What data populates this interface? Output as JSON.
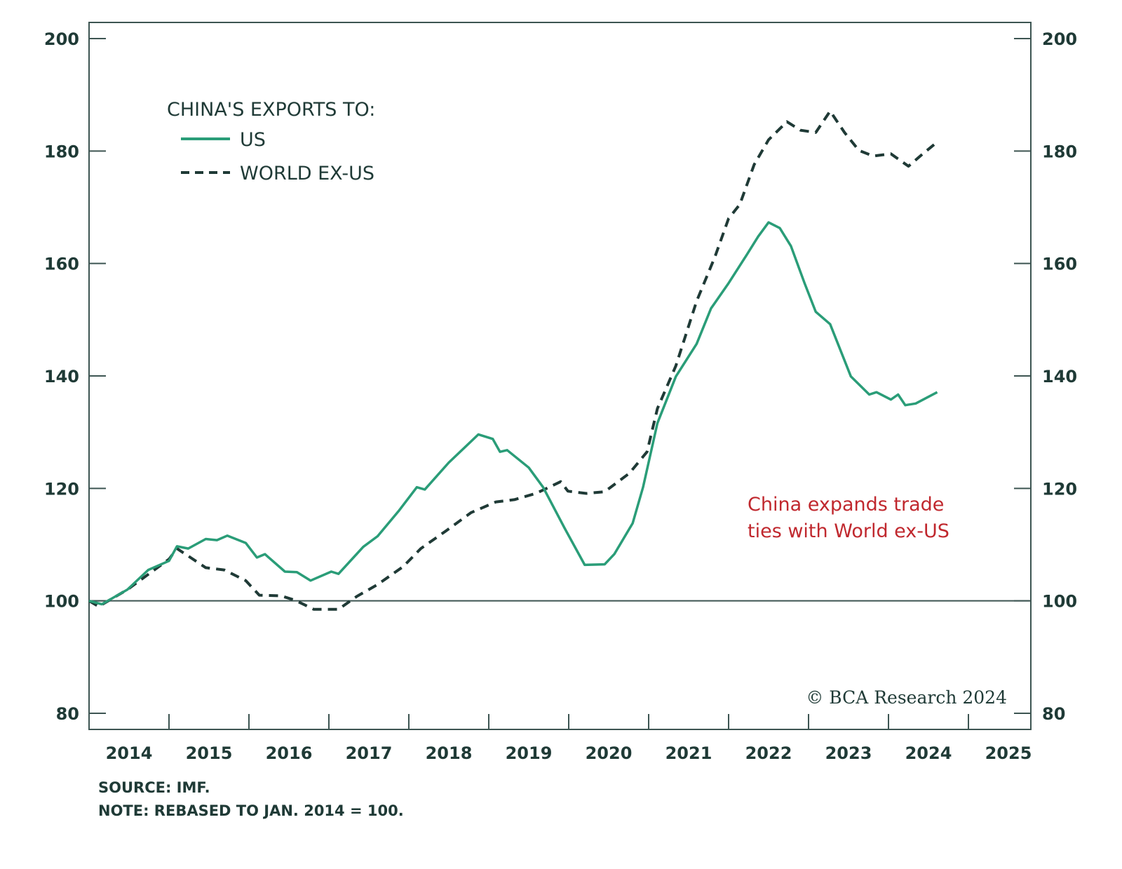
{
  "chart_data": {
    "type": "line",
    "title": "",
    "xlabel": "",
    "ylabel": "",
    "ylim": [
      80,
      200
    ],
    "yticks": [
      80,
      100,
      120,
      140,
      160,
      180,
      200
    ],
    "xlim": [
      2014,
      2025
    ],
    "xtick_labels": [
      "2014",
      "2015",
      "2016",
      "2017",
      "2018",
      "2019",
      "2020",
      "2021",
      "2022",
      "2023",
      "2024",
      "2025"
    ],
    "grid": false,
    "reference_line": 100,
    "legend": {
      "title": "CHINA'S EXPORTS TO:",
      "placement": "top-left"
    },
    "series": [
      {
        "name": "US",
        "color": "#2a9d78",
        "style": "solid",
        "x": [
          2014.0,
          2014.16,
          2014.48,
          2014.74,
          2015.0,
          2015.1,
          2015.24,
          2015.46,
          2015.6,
          2015.73,
          2015.96,
          2016.1,
          2016.2,
          2016.45,
          2016.6,
          2016.77,
          2017.03,
          2017.12,
          2017.43,
          2017.61,
          2017.88,
          2018.1,
          2018.2,
          2018.5,
          2018.87,
          2019.05,
          2019.14,
          2019.23,
          2019.5,
          2019.68,
          2019.95,
          2020.2,
          2020.45,
          2020.57,
          2020.8,
          2020.93,
          2021.11,
          2021.34,
          2021.6,
          2021.78,
          2022.0,
          2022.23,
          2022.37,
          2022.5,
          2022.64,
          2022.78,
          2022.95,
          2023.09,
          2023.27,
          2023.53,
          2023.76,
          2023.85,
          2024.03,
          2024.12,
          2024.21,
          2024.34,
          2024.61
        ],
        "y": [
          100,
          99.4,
          102,
          105.5,
          107.1,
          109.7,
          109.3,
          111,
          110.8,
          111.6,
          110.3,
          107.7,
          108.3,
          105.2,
          105.1,
          103.6,
          105.2,
          104.8,
          109.6,
          111.5,
          116.1,
          120.2,
          119.8,
          124.6,
          129.6,
          128.8,
          126.5,
          126.8,
          123.7,
          120.2,
          112.9,
          106.4,
          106.5,
          108.3,
          113.8,
          120.2,
          131.6,
          139.9,
          145.7,
          152,
          156.5,
          161.6,
          164.8,
          167.3,
          166.3,
          163.1,
          156.5,
          151.4,
          149.2,
          139.9,
          136.7,
          137.1,
          135.8,
          136.7,
          134.8,
          135.1,
          137.1
        ]
      },
      {
        "name": "WORLD EX-US",
        "color": "#1f3a36",
        "style": "dashed",
        "x": [
          2014.0,
          2014.12,
          2014.48,
          2015.0,
          2015.1,
          2015.46,
          2015.69,
          2015.96,
          2016.13,
          2016.4,
          2016.58,
          2016.81,
          2017.12,
          2017.35,
          2017.61,
          2017.93,
          2018.15,
          2018.47,
          2018.78,
          2019.09,
          2019.32,
          2019.59,
          2019.9,
          2019.99,
          2020.22,
          2020.45,
          2020.76,
          2020.98,
          2021.11,
          2021.34,
          2021.6,
          2021.83,
          2022.0,
          2022.14,
          2022.32,
          2022.5,
          2022.73,
          2022.9,
          2023.09,
          2023.27,
          2023.45,
          2023.63,
          2023.81,
          2024.03,
          2024.25,
          2024.43,
          2024.61
        ],
        "y": [
          100,
          99,
          102,
          107.4,
          109.3,
          105.9,
          105.5,
          103.6,
          101,
          100.9,
          100.1,
          98.5,
          98.5,
          100.8,
          102.9,
          106.1,
          109.3,
          112.5,
          115.7,
          117.6,
          118,
          119.1,
          121.2,
          119.5,
          119.1,
          119.4,
          122.7,
          126.5,
          134.2,
          141.8,
          153.3,
          161.2,
          168,
          170.5,
          177.6,
          182,
          185.2,
          183.7,
          183.3,
          187.1,
          183.3,
          180.1,
          179.1,
          179.5,
          177.3,
          179.5,
          181.6
        ]
      }
    ],
    "annotation": {
      "lines": [
        "China expands trade",
        "ties with World ex-US"
      ],
      "color": "#c0282e"
    },
    "source": "SOURCE: IMF.",
    "note": "NOTE: REBASED TO JAN. 2014 = 100.",
    "copyright": "© BCA Research 2024"
  }
}
